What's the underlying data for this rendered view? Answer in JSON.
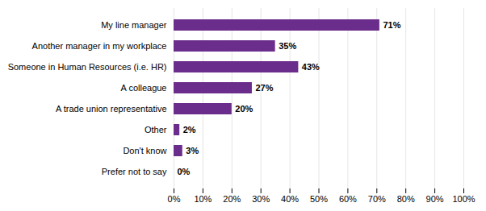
{
  "chart_data": {
    "type": "bar",
    "orientation": "horizontal",
    "categories": [
      "Prefer not to say",
      "Don't know",
      "Other",
      "A trade union representative",
      "A colleague",
      "Someone in Human Resources (i.e. HR)",
      "Another manager in my workplace",
      "My line manager"
    ],
    "values": [
      0,
      3,
      2,
      20,
      27,
      43,
      35,
      71
    ],
    "value_labels": [
      "0%",
      "3%",
      "2%",
      "20%",
      "27%",
      "43%",
      "35%",
      "71%"
    ],
    "data_labels": true,
    "color": "#6b2d8b",
    "xlim": [
      0,
      100
    ],
    "xticks": [
      {
        "value": 0,
        "label": "0%"
      },
      {
        "value": 10,
        "label": "10%"
      },
      {
        "value": 20,
        "label": "20%"
      },
      {
        "value": 30,
        "label": "30%"
      },
      {
        "value": 40,
        "label": "40%"
      },
      {
        "value": 50,
        "label": "50%"
      },
      {
        "value": 60,
        "label": "60%"
      },
      {
        "value": 70,
        "label": "70%"
      },
      {
        "value": 80,
        "label": "80%"
      },
      {
        "value": 90,
        "label": "90%"
      },
      {
        "value": 100,
        "label": "100%"
      }
    ],
    "grid": true
  }
}
